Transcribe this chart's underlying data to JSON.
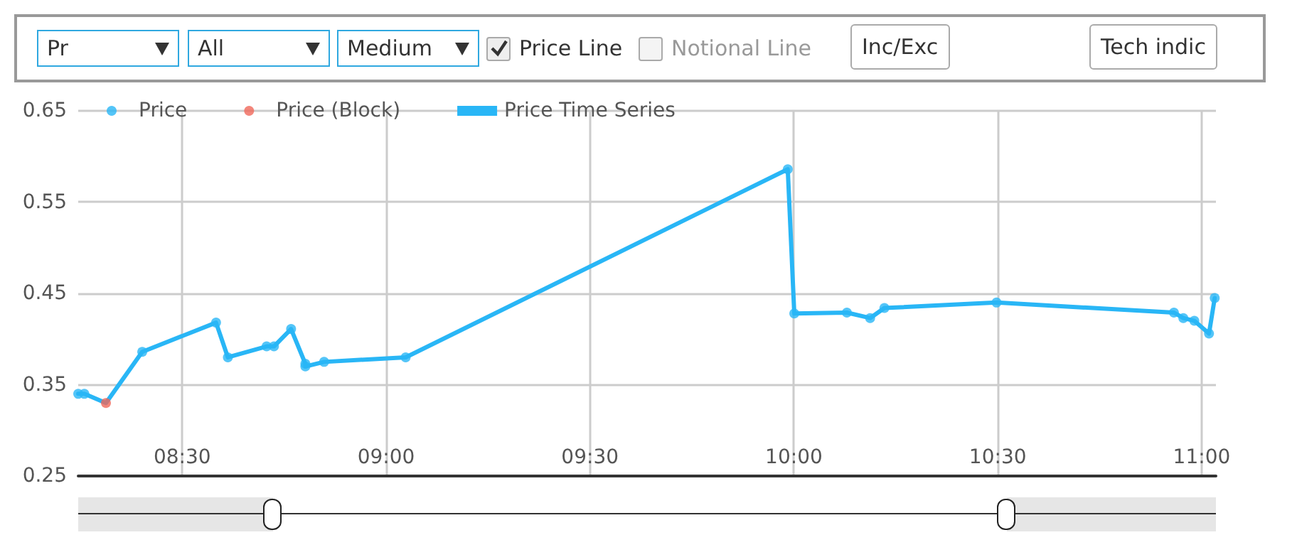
{
  "chart_data": {
    "type": "line",
    "annotations": [
      "Pr",
      "All",
      "Medium",
      "Price Line",
      "Notional Line",
      "Inc/Exc",
      "Tech indic"
    ],
    "xlim": [
      8.245,
      11.035
    ],
    "xticks": [
      {
        "value": 8.5,
        "label": "08:30"
      },
      {
        "value": 9,
        "label": "09:00"
      },
      {
        "value": 9.5,
        "label": "09:30"
      },
      {
        "value": 10,
        "label": "10:00"
      },
      {
        "value": 10.5,
        "label": "10:30"
      },
      {
        "value": 11,
        "label": "11:00"
      }
    ],
    "ylim": [
      0.25,
      0.65
    ],
    "yticks": [
      0.25,
      0.35,
      0.45,
      0.55,
      0.65
    ],
    "grid": true,
    "legend": "top left",
    "series": [
      {
        "name": "Price",
        "type": "scatter",
        "marker": "circle",
        "color": "#29b6f6",
        "x": [
          8.245,
          8.26,
          8.402,
          8.583,
          8.612,
          8.707,
          8.725,
          8.767,
          8.802,
          8.802,
          8.848,
          9.048,
          9.985,
          10.001,
          10.13,
          10.187,
          10.222,
          10.497,
          10.932,
          10.955,
          10.982,
          11.018,
          11.032
        ],
        "values": [
          0.34,
          0.34,
          0.386,
          0.418,
          0.38,
          0.392,
          0.392,
          0.411,
          0.373,
          0.37,
          0.375,
          0.38,
          0.586,
          0.428,
          0.429,
          0.423,
          0.434,
          0.44,
          0.429,
          0.423,
          0.42,
          0.406,
          0.445
        ]
      },
      {
        "name": "Price (Block)",
        "type": "scatter",
        "marker": "circle",
        "color": "#f0685a",
        "x": [
          8.313
        ],
        "values": [
          0.33
        ]
      },
      {
        "name": "Price Time Series",
        "type": "line",
        "marker": "none",
        "line_style": "solid",
        "color": "#29b6f6",
        "x": [
          8.245,
          8.26,
          8.313,
          8.402,
          8.583,
          8.612,
          8.707,
          8.725,
          8.767,
          8.802,
          8.802,
          8.848,
          9.048,
          9.985,
          10.001,
          10.13,
          10.187,
          10.222,
          10.497,
          10.932,
          10.955,
          10.982,
          11.018,
          11.032
        ],
        "values": [
          0.34,
          0.34,
          0.33,
          0.386,
          0.418,
          0.38,
          0.392,
          0.392,
          0.411,
          0.373,
          0.37,
          0.375,
          0.38,
          0.586,
          0.428,
          0.429,
          0.423,
          0.434,
          0.44,
          0.429,
          0.423,
          0.42,
          0.406,
          0.445
        ]
      }
    ]
  }
}
